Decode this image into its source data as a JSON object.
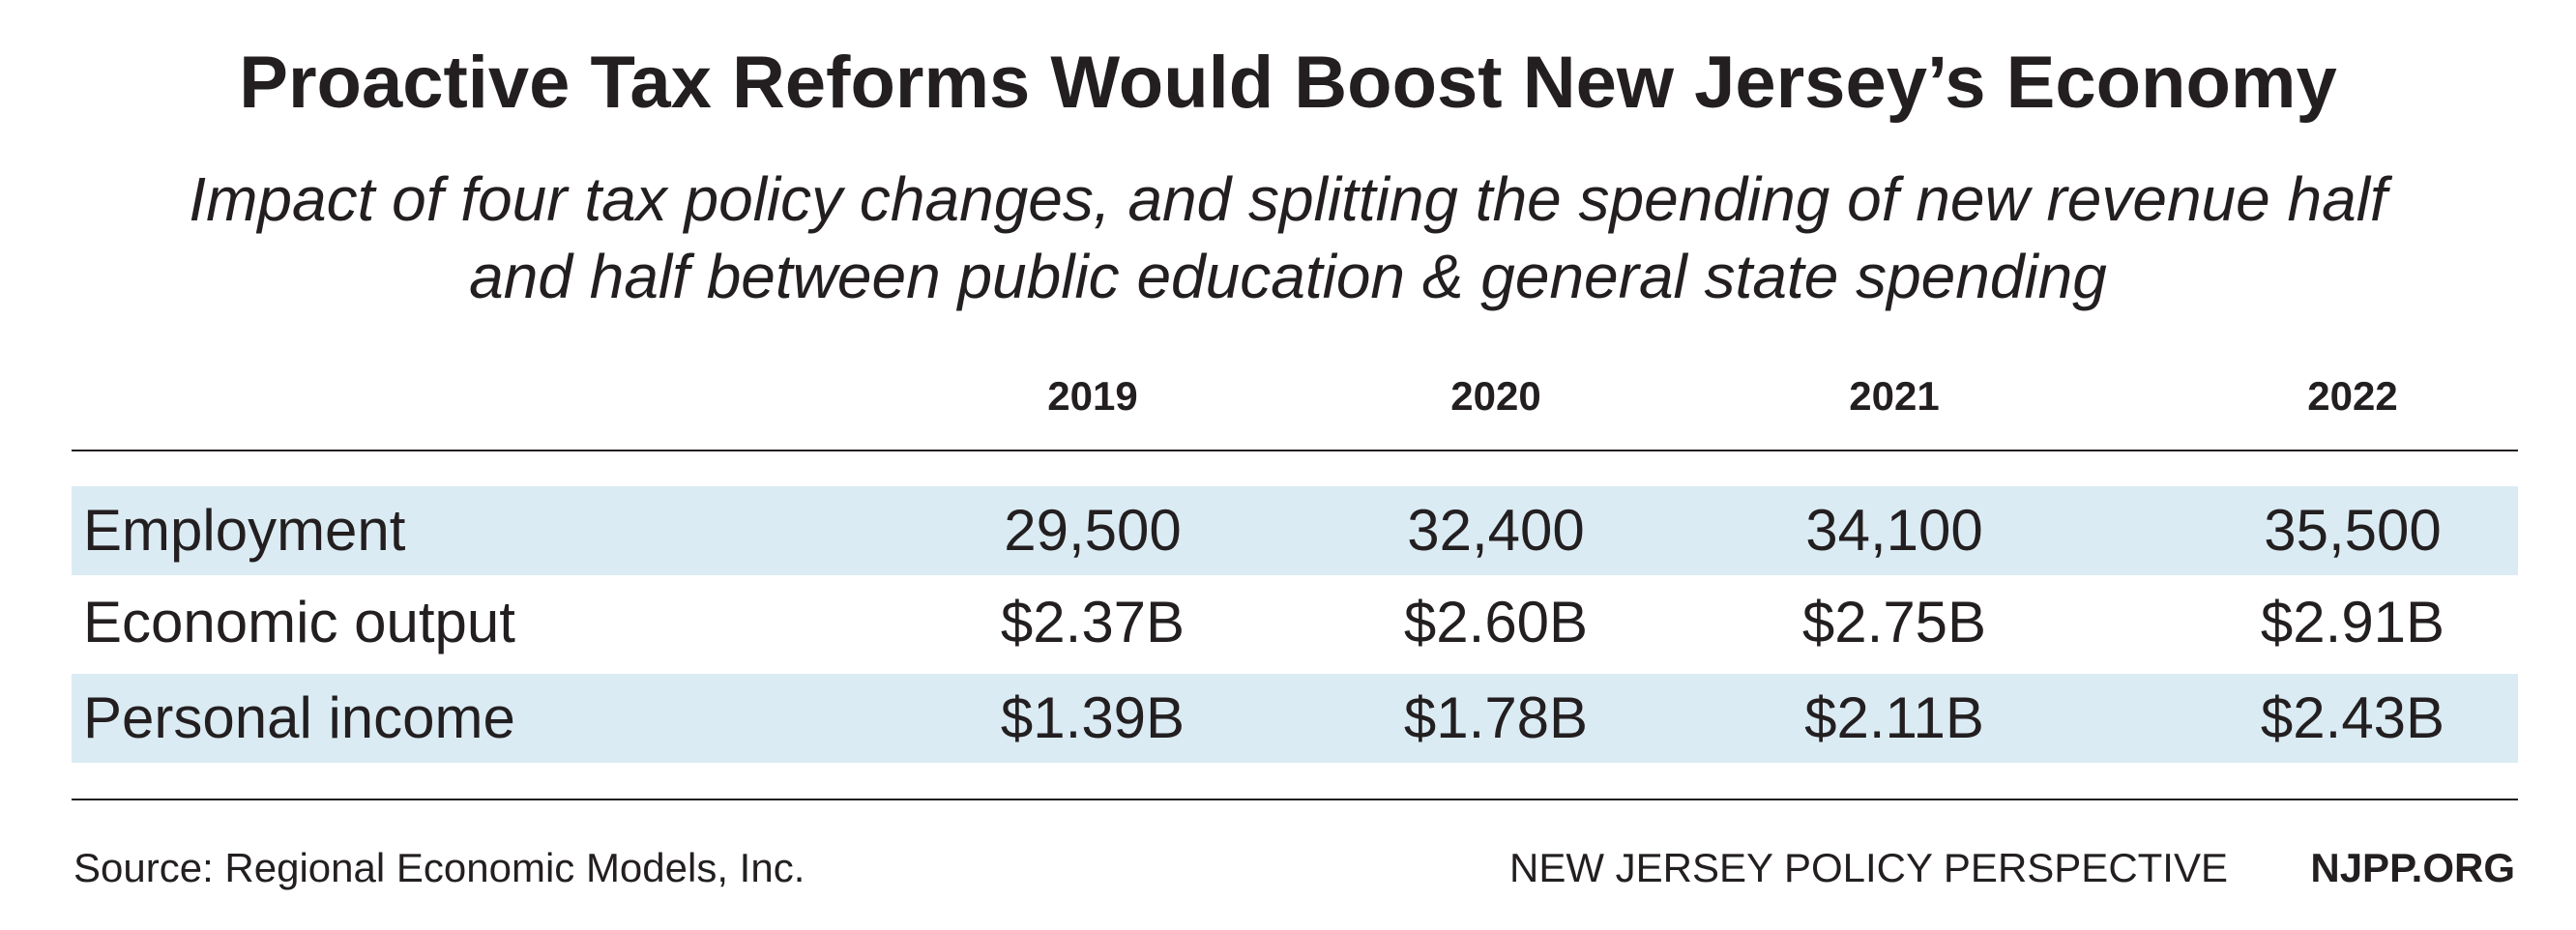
{
  "chart_data": {
    "type": "table",
    "title": "Proactive Tax Reforms Would Boost New Jersey’s Economy",
    "subtitle_lines": [
      "Impact of four tax policy changes, and splitting the spending of new revenue half",
      "and half between public education & general state spending"
    ],
    "columns": [
      "2019",
      "2020",
      "2021",
      "2022"
    ],
    "rows": [
      {
        "label": "Employment",
        "values": [
          "29,500",
          "32,400",
          "34,100",
          "35,500"
        ],
        "shaded": true
      },
      {
        "label": "Economic output",
        "values": [
          "$2.37B",
          "$2.60B",
          "$2.75B",
          "$2.91B"
        ],
        "shaded": false
      },
      {
        "label": "Personal income",
        "values": [
          "$1.39B",
          "$1.78B",
          "$2.11B",
          "$2.43B"
        ],
        "shaded": true
      }
    ],
    "row_shade_color": "#dbebf3"
  },
  "footer": {
    "source": "Source: Regional Economic Models, Inc.",
    "org": "NEW JERSEY POLICY PERSPECTIVE",
    "url": "NJPP.ORG"
  }
}
